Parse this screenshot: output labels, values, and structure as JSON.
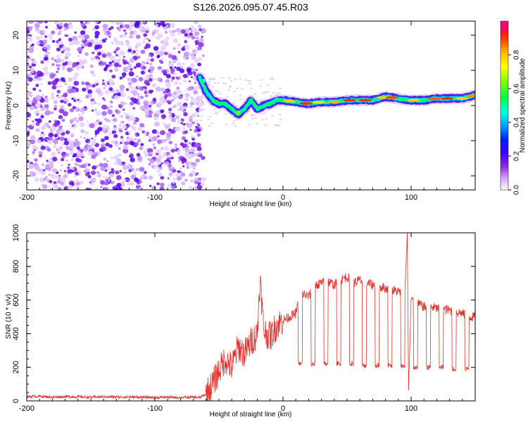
{
  "figure_title": "S126.2026.095.07.45.R03",
  "chart_data": [
    {
      "type": "heatmap",
      "xlabel": "Height of straight line (km)",
      "ylabel": "Frequency (Hz)",
      "xlim": [
        -200,
        150
      ],
      "ylim": [
        -24,
        24
      ],
      "xticks": [
        -200,
        -100,
        0,
        100
      ],
      "xtick_labels": [
        "-200",
        "-100",
        "0",
        "100"
      ],
      "yticks": [
        20,
        10,
        0,
        -10,
        -20
      ],
      "ytick_labels": [
        "20",
        "10",
        "0",
        "-10",
        "-20"
      ],
      "noise_region_end_km": -65,
      "track": {
        "x": [
          -65,
          -60,
          -55,
          -50,
          -45,
          -40,
          -35,
          -30,
          -25,
          -20,
          -15,
          -10,
          -5,
          0,
          10,
          20,
          30,
          40,
          50,
          60,
          70,
          80,
          90,
          100,
          110,
          120,
          130,
          140,
          150
        ],
        "y": [
          8,
          4,
          1.5,
          0.5,
          0.5,
          -1,
          -2.5,
          -1,
          1.5,
          -1,
          0,
          0.5,
          1.5,
          1.5,
          1,
          0.5,
          1,
          1,
          1.5,
          1.5,
          1.5,
          2.5,
          2,
          1.5,
          1.5,
          2,
          2,
          2,
          3
        ]
      },
      "colorbar": {
        "label": "Normalized spectral amplitude",
        "ticks": [
          0.0,
          0.2,
          0.4,
          0.6,
          0.8
        ],
        "tick_labels": [
          "0.0",
          "0.2",
          "0.4",
          "0.6",
          "0.8"
        ],
        "colors": [
          "#ffffff",
          "#d4a0ff",
          "#8a2be2",
          "#3c00ff",
          "#0020ff",
          "#00a0ff",
          "#00ffe0",
          "#00ff40",
          "#80ff00",
          "#ffff00",
          "#ffb000",
          "#ff3000",
          "#ff0060",
          "#ff0090"
        ]
      }
    },
    {
      "type": "line",
      "xlabel": "Height of straight line (km)",
      "ylabel": "SNR (10 * v/v)",
      "xlim": [
        -200,
        150
      ],
      "ylim": [
        0,
        1000
      ],
      "xticks": [
        -200,
        -100,
        0,
        100
      ],
      "xtick_labels": [
        "-200",
        "-100",
        "0",
        "100"
      ],
      "yticks": [
        0,
        200,
        400,
        600,
        800,
        1000
      ],
      "ytick_labels": [
        "0",
        "200",
        "400",
        "600",
        "800",
        "1000"
      ],
      "series": [
        {
          "name": "SNR",
          "color": "#e8302a",
          "x": [
            -200,
            -190,
            -180,
            -170,
            -160,
            -150,
            -140,
            -130,
            -120,
            -110,
            -100,
            -90,
            -80,
            -70,
            -65,
            -60,
            -55,
            -50,
            -45,
            -40,
            -35,
            -30,
            -25,
            -20,
            -18,
            -15,
            -10,
            -5,
            0,
            5,
            10,
            12,
            15,
            20,
            25,
            30,
            35,
            40,
            45,
            50,
            55,
            60,
            65,
            70,
            75,
            80,
            85,
            90,
            95,
            97,
            98,
            100,
            105,
            110,
            115,
            120,
            125,
            130,
            135,
            140,
            145,
            150
          ],
          "y": [
            25,
            28,
            22,
            26,
            24,
            22,
            25,
            23,
            24,
            22,
            20,
            22,
            20,
            22,
            20,
            40,
            100,
            180,
            250,
            200,
            320,
            280,
            350,
            400,
            730,
            420,
            380,
            450,
            480,
            500,
            520,
            580,
            640,
            620,
            690,
            700,
            710,
            690,
            720,
            740,
            700,
            720,
            700,
            690,
            680,
            670,
            660,
            650,
            640,
            1000,
            60,
            600,
            580,
            560,
            560,
            550,
            545,
            540,
            530,
            520,
            500,
            500
          ]
        }
      ],
      "dropouts": [
        {
          "x": 12,
          "y": 220
        },
        {
          "x": 22,
          "y": 220
        },
        {
          "x": 32,
          "y": 220
        },
        {
          "x": 42,
          "y": 220
        },
        {
          "x": 52,
          "y": 220
        },
        {
          "x": 62,
          "y": 210
        },
        {
          "x": 72,
          "y": 210
        },
        {
          "x": 82,
          "y": 210
        },
        {
          "x": 92,
          "y": 210
        },
        {
          "x": 102,
          "y": 200
        },
        {
          "x": 112,
          "y": 200
        },
        {
          "x": 122,
          "y": 200
        },
        {
          "x": 132,
          "y": 190
        },
        {
          "x": 142,
          "y": 190
        }
      ]
    }
  ]
}
